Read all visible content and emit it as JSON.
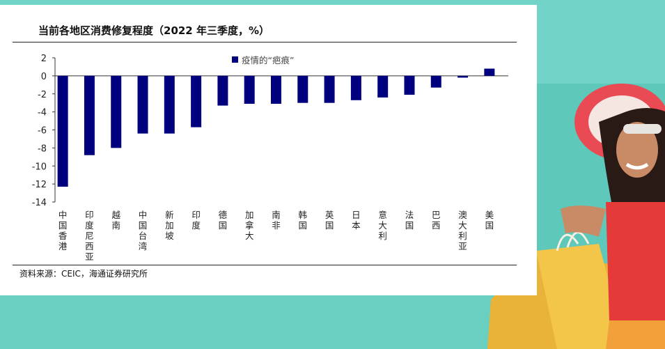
{
  "colors": {
    "bar": "#00007f",
    "background_teal": "#6fd3c6",
    "text": "#111111"
  },
  "chart_data": {
    "type": "bar",
    "title": "当前各地区消费修复程度（2022 年三季度，%）",
    "legend": "疫情的“疤痕”",
    "legend_position": "top",
    "categories": [
      "中国香港",
      "印度尼西亚",
      "越南",
      "中国台湾",
      "新加坡",
      "印度",
      "德国",
      "加拿大",
      "南非",
      "韩国",
      "英国",
      "日本",
      "意大利",
      "法国",
      "巴西",
      "澳大利亚",
      "美国"
    ],
    "values": [
      -12.3,
      -8.8,
      -8.0,
      -6.4,
      -6.4,
      -5.7,
      -3.3,
      -3.1,
      -3.1,
      -3.0,
      -3.0,
      -2.7,
      -2.4,
      -2.1,
      -1.3,
      -0.2,
      0.8
    ],
    "yticks": [
      2,
      0,
      -2,
      -4,
      -6,
      -8,
      -10,
      -12,
      -14
    ],
    "ylim": [
      -14,
      2
    ],
    "grid": false
  },
  "source": "资料来源：CEIC，海通证券研究所"
}
